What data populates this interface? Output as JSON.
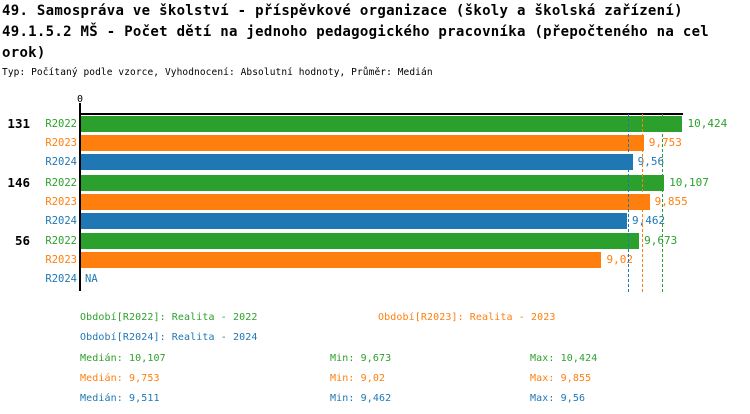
{
  "title": {
    "line1": "49. Samospráva ve školství - příspěvkové organizace (školy a školská zařízení)",
    "line2": "49.1.5.2 MŠ - Počet dětí na jednoho pedagogického pracovníka (přepočteného na cel",
    "line3": "orok)",
    "typ": "Typ: Počítaný podle vzorce, Vyhodnocení: Absolutní hodnoty, Průměr: Medián"
  },
  "colors": {
    "R2022": "#2ca02c",
    "R2023": "#ff7f0e",
    "R2024": "#1f77b4",
    "axis": "#000000"
  },
  "chart_data": {
    "type": "bar",
    "orientation": "horizontal",
    "title": "49.1.5.2 MŠ - Počet dětí na jednoho pedagogického pracovníka (přepočteného na celorok)",
    "xlabel": "",
    "ylabel": "",
    "x_zero_label": "0",
    "xlim": [
      0,
      10.45
    ],
    "grid": false,
    "categories": [
      "131",
      "146",
      "56"
    ],
    "series": [
      {
        "name": "R2022",
        "values": [
          10.424,
          10.107,
          9.673
        ]
      },
      {
        "name": "R2023",
        "values": [
          9.753,
          9.855,
          9.02
        ]
      },
      {
        "name": "R2024",
        "values": [
          9.56,
          9.462,
          null
        ]
      }
    ],
    "groups": [
      {
        "label": "131",
        "rows": [
          {
            "series": "R2022",
            "value": 10.424,
            "display": "10,424"
          },
          {
            "series": "R2023",
            "value": 9.753,
            "display": "9,753"
          },
          {
            "series": "R2024",
            "value": 9.56,
            "display": "9,56"
          }
        ]
      },
      {
        "label": "146",
        "rows": [
          {
            "series": "R2022",
            "value": 10.107,
            "display": "10,107"
          },
          {
            "series": "R2023",
            "value": 9.855,
            "display": "9,855"
          },
          {
            "series": "R2024",
            "value": 9.462,
            "display": "9,462"
          }
        ]
      },
      {
        "label": "56",
        "rows": [
          {
            "series": "R2022",
            "value": 9.673,
            "display": "9,673"
          },
          {
            "series": "R2023",
            "value": 9.02,
            "display": "9,02"
          },
          {
            "series": "R2024",
            "value": null,
            "display": "NA"
          }
        ]
      }
    ],
    "median_lines": [
      {
        "series": "R2024",
        "value": 9.511
      },
      {
        "series": "R2023",
        "value": 9.753
      },
      {
        "series": "R2022",
        "value": 10.107
      }
    ]
  },
  "legend": {
    "items": [
      {
        "series": "R2022",
        "label": "Období[R2022]: Realita - 2022"
      },
      {
        "series": "R2023",
        "label": "Období[R2023]: Realita - 2023"
      },
      {
        "series": "R2024",
        "label": "Období[R2024]: Realita - 2024"
      }
    ]
  },
  "stats": {
    "rows": [
      {
        "series": "R2022",
        "median": "Medián: 10,107",
        "min": "Min: 9,673",
        "max": "Max: 10,424"
      },
      {
        "series": "R2023",
        "median": "Medián: 9,753",
        "min": "Min: 9,02",
        "max": "Max: 9,855"
      },
      {
        "series": "R2024",
        "median": "Medián: 9,511",
        "min": "Min: 9,462",
        "max": "Max: 9,56"
      }
    ]
  }
}
